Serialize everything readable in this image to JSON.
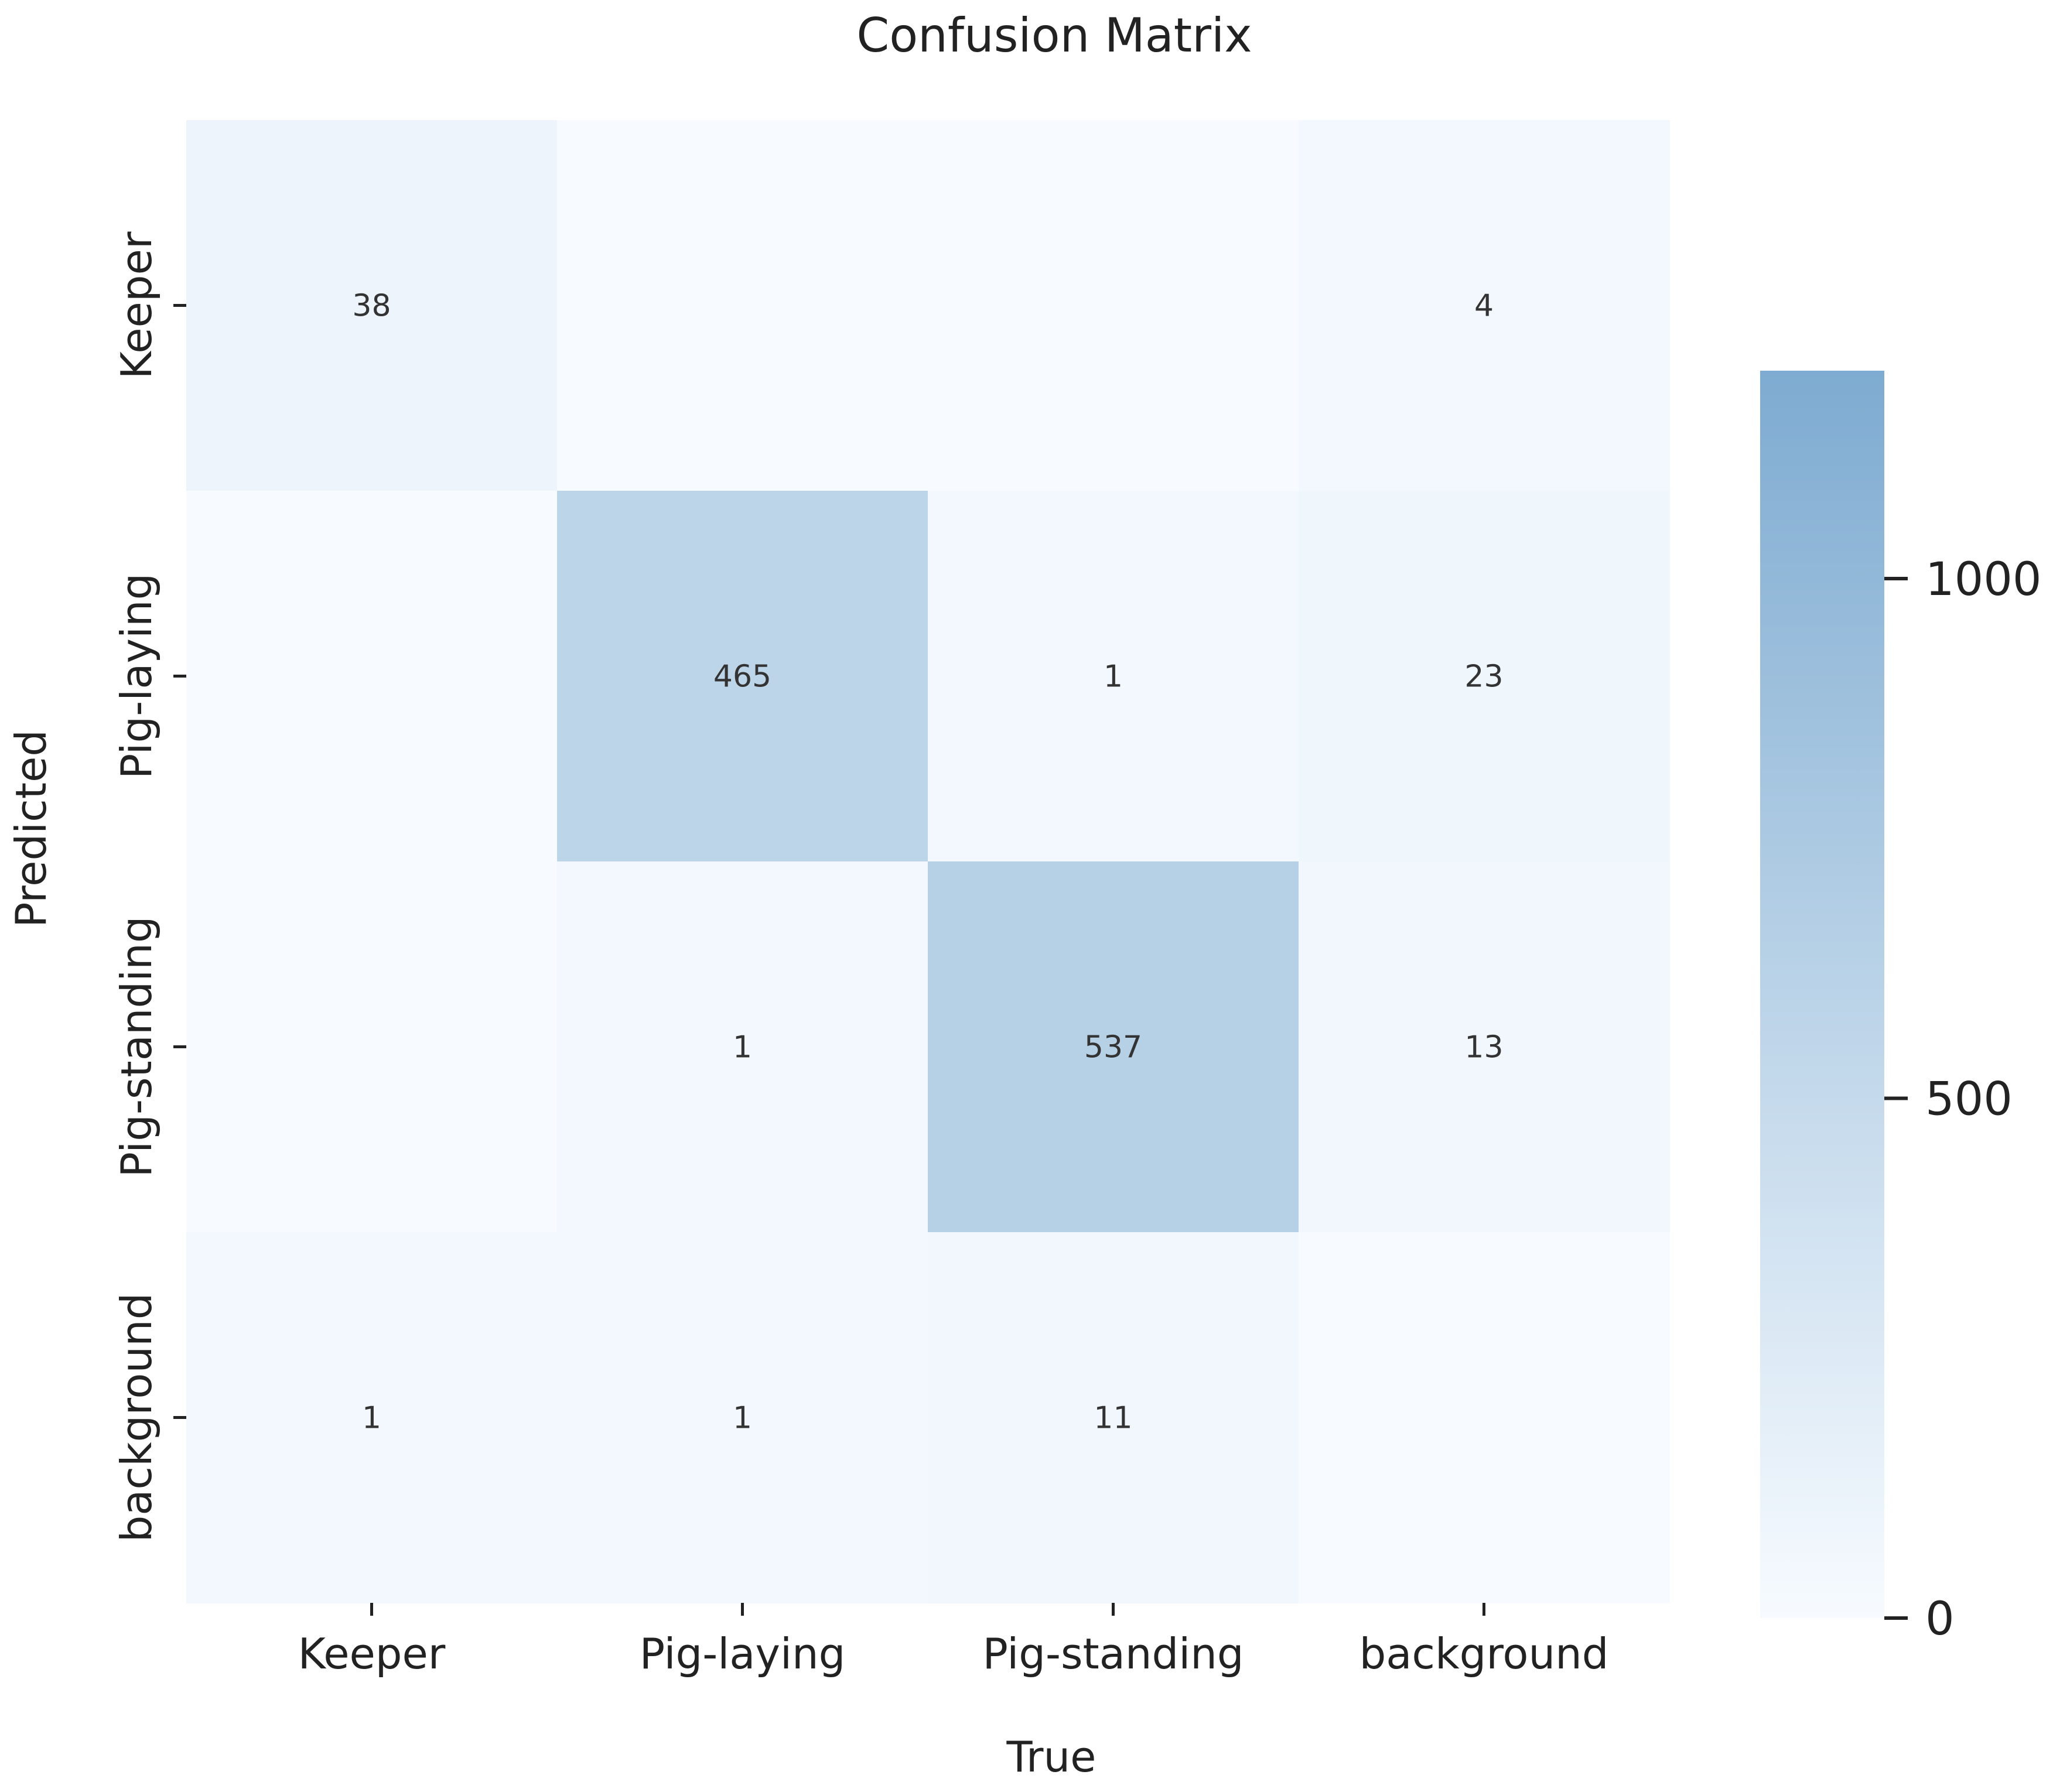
{
  "chart_data": {
    "type": "heatmap",
    "title": "Confusion Matrix",
    "xlabel": "True",
    "ylabel": "Predicted",
    "x_categories": [
      "Keeper",
      "Pig-laying",
      "Pig-standing",
      "background"
    ],
    "y_categories": [
      "Keeper",
      "Pig-laying",
      "Pig-standing",
      "background"
    ],
    "matrix": [
      [
        38,
        0,
        0,
        4
      ],
      [
        0,
        465,
        1,
        23
      ],
      [
        0,
        1,
        537,
        13
      ],
      [
        1,
        1,
        11,
        0
      ]
    ],
    "cell_labels": [
      [
        "38",
        "",
        "",
        "4"
      ],
      [
        "",
        "465",
        "1",
        "23"
      ],
      [
        "",
        "1",
        "537",
        "13"
      ],
      [
        "1",
        "1",
        "11",
        ""
      ]
    ],
    "colorbar": {
      "min": 0,
      "max": 1200,
      "ticks": [
        0,
        500,
        1000
      ],
      "tick_labels": [
        "0",
        "500",
        "1000"
      ]
    },
    "colors": {
      "low": "#f7fbff",
      "high": "#7eabd1",
      "text": "#333333",
      "axis": "#222222"
    }
  }
}
